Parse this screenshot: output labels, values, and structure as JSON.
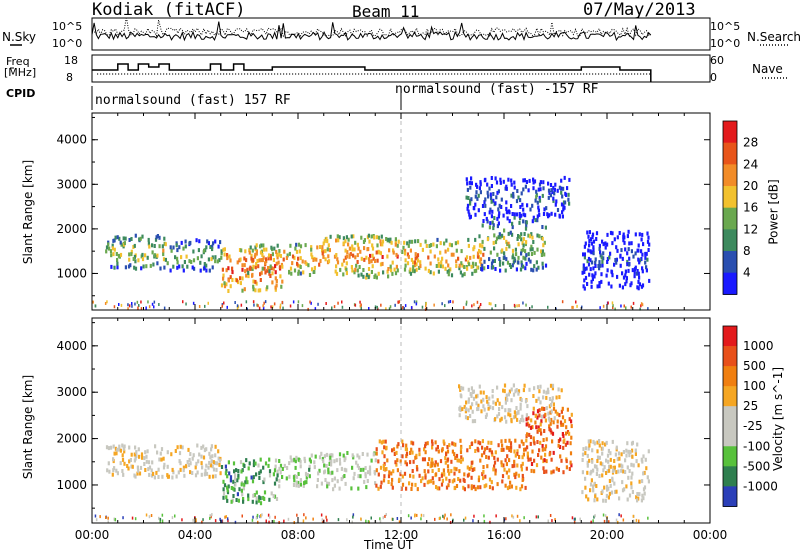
{
  "header": {
    "station": "Kodiak (fitACF)",
    "beam": "Beam 11",
    "date": "07/May/2013"
  },
  "params": {
    "nsky_label": "N.Sky",
    "nsearch_label": "N.Search",
    "freq_label_top": "Freq",
    "freq_label_bottom": "[MHz]",
    "nave_label": "Nave",
    "cpid_label": "CPID",
    "noise_ticks": [
      "10^5",
      "10^0"
    ],
    "freq_ticks": [
      "18",
      "8"
    ],
    "nave_ticks": [
      "60",
      "0"
    ],
    "modes": [
      "normalsound (fast) 157 RF",
      "normalsound (fast) -157 RF"
    ]
  },
  "colors": {
    "power_scale": [
      "#1a1aff",
      "#2a4fb0",
      "#3d8a5e",
      "#6aa84f",
      "#f2c12e",
      "#f28c28",
      "#e8551a",
      "#e31a1c"
    ],
    "velocity_scale": [
      "#2b3fb8",
      "#2f7f4f",
      "#58c13c",
      "#c8c8c0",
      "#c8c8c0",
      "#f5a623",
      "#f07f10",
      "#e8501a",
      "#e31a1c"
    ],
    "ground_scatter": "#c8c8c0"
  },
  "chart_data": [
    {
      "type": "heatmap",
      "title": "Power",
      "ylabel": "Slant Range [km]",
      "colorbar_label": "Power [dB]",
      "colorbar_ticks": [
        "28",
        "24",
        "20",
        "16",
        "12",
        "8",
        "4"
      ],
      "x_range_hours": [
        0,
        24
      ],
      "ylim": [
        180,
        4600
      ],
      "y_ticks": [
        "1000",
        "2000",
        "3000",
        "4000"
      ],
      "features": [
        {
          "t0": 0.5,
          "t1": 2.9,
          "r0": 1150,
          "r1": 1900,
          "level": 0.55
        },
        {
          "t0": 3.0,
          "t1": 5.0,
          "r0": 1100,
          "r1": 1800,
          "level": 0.45
        },
        {
          "t0": 5.0,
          "t1": 7.4,
          "r0": 650,
          "r1": 1600,
          "level": 0.85
        },
        {
          "t0": 6.0,
          "t1": 8.6,
          "r0": 1000,
          "r1": 1700,
          "level": 0.7
        },
        {
          "t0": 8.6,
          "t1": 11.9,
          "r0": 950,
          "r1": 1900,
          "level": 0.75
        },
        {
          "t0": 12.0,
          "t1": 15.2,
          "r0": 1000,
          "r1": 1800,
          "level": 0.7
        },
        {
          "t0": 15.0,
          "t1": 17.6,
          "r0": 1100,
          "r1": 2300,
          "level": 0.5
        },
        {
          "t0": 14.5,
          "t1": 18.5,
          "r0": 2300,
          "r1": 3200,
          "level": 0.25
        },
        {
          "t0": 19.0,
          "t1": 21.6,
          "r0": 700,
          "r1": 2000,
          "level": 0.15
        }
      ]
    },
    {
      "type": "heatmap",
      "title": "Velocity",
      "ylabel": "Slant Range [km]",
      "xlabel": "Time UT",
      "colorbar_label": "Velocity [m s^-1]",
      "colorbar_ticks": [
        "1000",
        "500",
        "100",
        "25",
        "-25",
        "-100",
        "-500",
        "-1000"
      ],
      "x_range_hours": [
        0,
        24
      ],
      "x_ticks": [
        "00:00",
        "04:00",
        "08:00",
        "12:00",
        "16:00",
        "20:00",
        "00:00"
      ],
      "ylim": [
        180,
        4600
      ],
      "y_ticks": [
        "1000",
        "2000",
        "3000",
        "4000"
      ],
      "features": [
        {
          "t0": 0.5,
          "t1": 5.0,
          "r0": 1200,
          "r1": 1900,
          "level": 0.5
        },
        {
          "t0": 5.0,
          "t1": 7.2,
          "r0": 650,
          "r1": 1600,
          "level": 0.25
        },
        {
          "t0": 7.2,
          "t1": 8.8,
          "r0": 1000,
          "r1": 1700,
          "level": 0.35
        },
        {
          "t0": 8.8,
          "t1": 11.0,
          "r0": 950,
          "r1": 1750,
          "level": 0.4
        },
        {
          "t0": 11.0,
          "t1": 16.8,
          "r0": 950,
          "r1": 2000,
          "level": 0.72
        },
        {
          "t0": 16.8,
          "t1": 18.6,
          "r0": 1300,
          "r1": 2700,
          "level": 0.78
        },
        {
          "t0": 14.2,
          "t1": 18.2,
          "r0": 2400,
          "r1": 3200,
          "level": 0.5
        },
        {
          "t0": 19.0,
          "t1": 21.6,
          "r0": 700,
          "r1": 2000,
          "level": 0.5
        }
      ]
    }
  ]
}
